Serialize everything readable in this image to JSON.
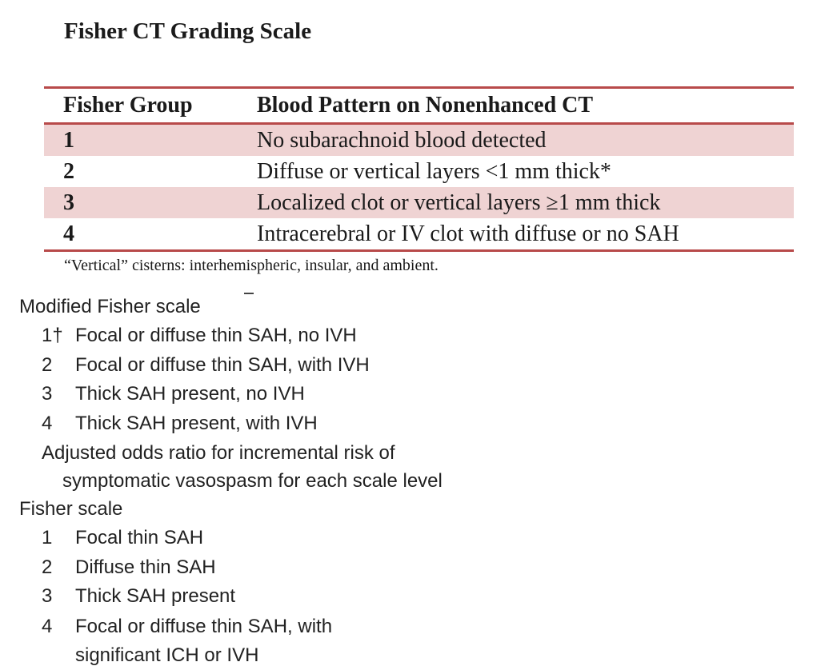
{
  "title": "Fisher CT Grading Scale",
  "table": {
    "headers": [
      "Fisher Group",
      "Blood Pattern on Nonenhanced CT"
    ],
    "rows": [
      {
        "group": "1",
        "pattern": "No subarachnoid blood detected"
      },
      {
        "group": "2",
        "pattern": "Diffuse or vertical layers <1 mm thick*"
      },
      {
        "group": "3",
        "pattern": "Localized clot or vertical layers ≥1 mm thick"
      },
      {
        "group": "4",
        "pattern": "Intracerebral or IV clot with diffuse or no SAH"
      }
    ],
    "header_border_color": "#b84a4a",
    "shade_color": "#efd3d3"
  },
  "footnote": "“Vertical” cisterns: interhemispheric, insular, and ambient.",
  "modified_fisher": {
    "title": "Modified Fisher scale",
    "items": [
      {
        "num": "1†",
        "text": "Focal or diffuse thin SAH, no IVH"
      },
      {
        "num": "2",
        "text": "Focal or diffuse thin SAH, with IVH"
      },
      {
        "num": "3",
        "text": "Thick SAH present, no IVH"
      },
      {
        "num": "4",
        "text": "Thick SAH present, with IVH"
      }
    ],
    "note_line1": "Adjusted odds ratio for incremental risk of",
    "note_line2": "symptomatic vasospasm for each scale level"
  },
  "fisher_scale": {
    "title": "Fisher scale",
    "items": [
      {
        "num": "1",
        "text": "Focal thin SAH"
      },
      {
        "num": "2",
        "text": "Diffuse thin SAH"
      },
      {
        "num": "3",
        "text": "Thick SAH present"
      },
      {
        "num": "4",
        "text": "Focal or diffuse thin SAH, with"
      }
    ],
    "item4_continuation": "significant ICH or IVH"
  }
}
